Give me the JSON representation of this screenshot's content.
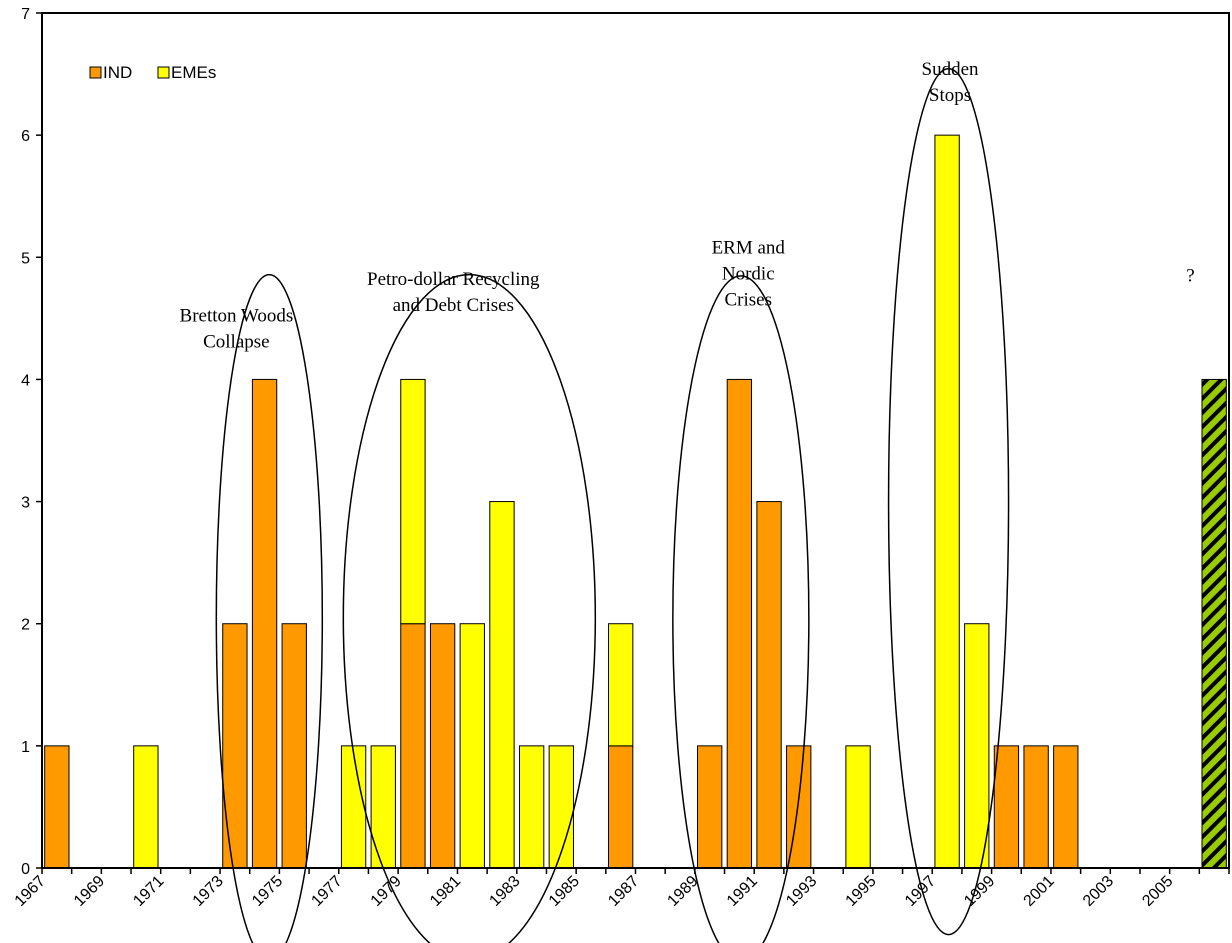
{
  "chart_data": {
    "type": "bar",
    "stacked": true,
    "categories": [
      "1967",
      "1968",
      "1969",
      "1970",
      "1971",
      "1972",
      "1973",
      "1974",
      "1975",
      "1976",
      "1977",
      "1978",
      "1979",
      "1980",
      "1981",
      "1982",
      "1983",
      "1984",
      "1985",
      "1986",
      "1987",
      "1988",
      "1989",
      "1990",
      "1991",
      "1992",
      "1993",
      "1994",
      "1995",
      "1996",
      "1997",
      "1998",
      "1999",
      "2000",
      "2001",
      "2002",
      "2003",
      "2004",
      "2005",
      "2006"
    ],
    "x_tick_labels": [
      "1967",
      "1969",
      "1971",
      "1973",
      "1975",
      "1977",
      "1979",
      "1981",
      "1983",
      "1985",
      "1987",
      "1989",
      "1991",
      "1993",
      "1995",
      "1997",
      "1999",
      "2001",
      "2003",
      "2005"
    ],
    "series": [
      {
        "name": "IND",
        "color": "#FF9900",
        "values": [
          1,
          0,
          0,
          0,
          0,
          0,
          2,
          4,
          2,
          0,
          0,
          0,
          2,
          2,
          0,
          0,
          0,
          0,
          0,
          1,
          0,
          0,
          1,
          4,
          3,
          1,
          0,
          0,
          0,
          0,
          0,
          0,
          1,
          1,
          1,
          0,
          0,
          0,
          0,
          0
        ]
      },
      {
        "name": "EMEs",
        "color": "#FFFF00",
        "values": [
          0,
          0,
          0,
          1,
          0,
          0,
          0,
          0,
          0,
          0,
          1,
          1,
          2,
          0,
          2,
          3,
          1,
          1,
          0,
          1,
          0,
          0,
          0,
          0,
          0,
          0,
          0,
          1,
          0,
          0,
          6,
          2,
          0,
          0,
          0,
          0,
          0,
          0,
          0,
          0
        ]
      }
    ],
    "hatched_bar": {
      "category": "2006",
      "value": 4,
      "colors": [
        "#99CC00",
        "#000000"
      ]
    },
    "title": "",
    "xlabel": "",
    "ylabel": "",
    "ylim": [
      0,
      7
    ],
    "y_ticks": [
      0,
      1,
      2,
      3,
      4,
      5,
      6,
      7
    ],
    "grid": false,
    "legend_position": "top-left",
    "annotations": [
      {
        "lines": [
          "Bretton Woods",
          "Collapse"
        ],
        "span": [
          "1973",
          "1975"
        ]
      },
      {
        "lines": [
          "Petro-dollar Recycling",
          "and Debt Crises"
        ],
        "span": [
          "1977",
          "1985"
        ]
      },
      {
        "lines": [
          "ERM and",
          "Nordic",
          "Crises"
        ],
        "span": [
          "1989",
          "1993"
        ]
      },
      {
        "lines": [
          "Sudden",
          "Stops"
        ],
        "span": [
          "1997",
          "1998"
        ]
      },
      {
        "lines": [
          "?"
        ],
        "span": [
          "2006",
          "2006"
        ]
      }
    ]
  }
}
